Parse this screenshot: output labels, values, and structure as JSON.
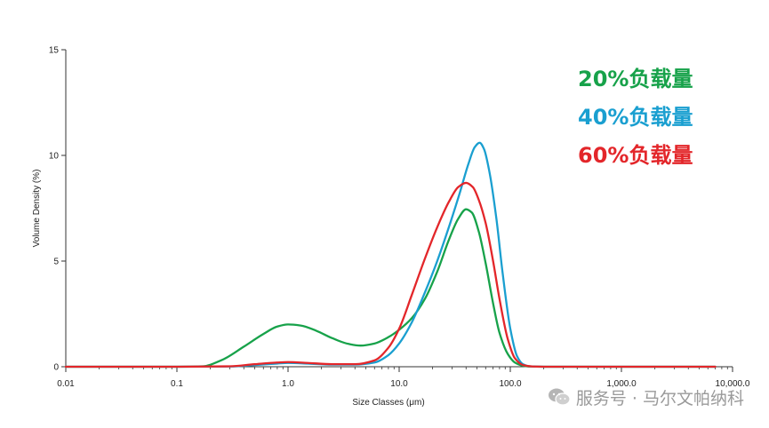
{
  "chart_data": {
    "type": "line",
    "title": "",
    "xlabel": "Size Classes (μm)",
    "ylabel": "Volume Density (%)",
    "xscale": "log",
    "xlim": [
      0.01,
      10000
    ],
    "ylim": [
      0,
      15
    ],
    "x_ticks": [
      {
        "value": 0.01,
        "label": "0.01"
      },
      {
        "value": 0.1,
        "label": "0.1"
      },
      {
        "value": 1,
        "label": "1.0"
      },
      {
        "value": 10,
        "label": "10.0"
      },
      {
        "value": 100,
        "label": "100.0"
      },
      {
        "value": 1000,
        "label": "1,000.0"
      },
      {
        "value": 10000,
        "label": "10,000.0"
      }
    ],
    "y_ticks": [
      {
        "value": 0,
        "label": "0"
      },
      {
        "value": 5,
        "label": "5"
      },
      {
        "value": 10,
        "label": "10"
      },
      {
        "value": 15,
        "label": "15"
      }
    ],
    "grid": false,
    "legend_position": "top-right",
    "series": [
      {
        "name": "20%负载量",
        "color": "#17a24a",
        "x": [
          0.01,
          0.1,
          0.17,
          0.25,
          0.4,
          0.6,
          0.8,
          1.0,
          1.3,
          1.8,
          2.5,
          3.5,
          4.5,
          6,
          8,
          10,
          13,
          17,
          22,
          28,
          34,
          40,
          45,
          52,
          60,
          70,
          80,
          95,
          110,
          130,
          150,
          200,
          1000,
          7000
        ],
        "y": [
          0,
          0,
          0.02,
          0.3,
          0.95,
          1.55,
          1.9,
          2.0,
          1.95,
          1.7,
          1.35,
          1.08,
          1.0,
          1.1,
          1.4,
          1.75,
          2.3,
          3.2,
          4.5,
          6.0,
          7.0,
          7.45,
          7.3,
          6.4,
          4.9,
          3.0,
          1.6,
          0.6,
          0.2,
          0.05,
          0.01,
          0,
          0,
          0
        ]
      },
      {
        "name": "40%负载量",
        "color": "#1a9fd0",
        "x": [
          0.01,
          0.1,
          0.3,
          0.5,
          0.8,
          1.0,
          1.5,
          2.5,
          4,
          6,
          8,
          10,
          13,
          17,
          22,
          28,
          35,
          42,
          48,
          53,
          58,
          65,
          75,
          85,
          100,
          115,
          130,
          150,
          200,
          1000,
          7000
        ],
        "y": [
          0,
          0,
          0.01,
          0.08,
          0.15,
          0.18,
          0.15,
          0.1,
          0.1,
          0.2,
          0.55,
          1.1,
          2.1,
          3.5,
          5.0,
          6.6,
          8.2,
          9.6,
          10.4,
          10.6,
          10.3,
          9.2,
          7.0,
          4.5,
          1.8,
          0.5,
          0.12,
          0.02,
          0,
          0,
          0
        ]
      },
      {
        "name": "60%负载量",
        "color": "#e3262a",
        "x": [
          0.01,
          0.1,
          0.3,
          0.5,
          0.8,
          1.0,
          1.5,
          2.5,
          4,
          6,
          8,
          10,
          13,
          17,
          22,
          28,
          34,
          40,
          46,
          52,
          60,
          70,
          80,
          95,
          110,
          130,
          160,
          200,
          1000,
          7000
        ],
        "y": [
          0,
          0,
          0.02,
          0.12,
          0.2,
          0.22,
          0.18,
          0.12,
          0.12,
          0.3,
          0.9,
          1.8,
          3.4,
          5.1,
          6.6,
          7.8,
          8.5,
          8.7,
          8.5,
          7.9,
          6.8,
          5.0,
          3.2,
          1.3,
          0.4,
          0.08,
          0.01,
          0,
          0,
          0
        ]
      }
    ]
  },
  "watermark": {
    "icon": "wechat-icon",
    "text": "服务号 · 马尔文帕纳科"
  }
}
